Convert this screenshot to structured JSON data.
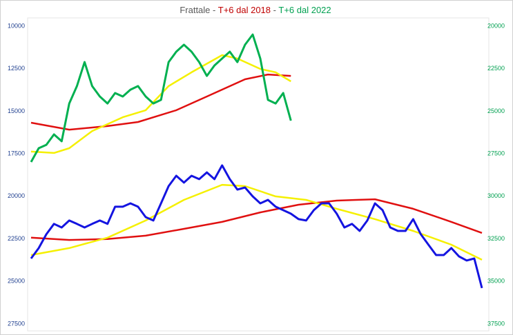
{
  "chart_data": {
    "type": "line",
    "title_parts": [
      {
        "text": "Frattale",
        "color": "#595959"
      },
      {
        "text": "-",
        "color": "#595959"
      },
      {
        "text": "T+6 dal 2018",
        "color": "#c00000"
      },
      {
        "text": "-",
        "color": "#595959"
      },
      {
        "text": "T+6 dal 2022",
        "color": "#00a050"
      }
    ],
    "xlim": [
      0,
      59
    ],
    "ylim": [
      10000,
      27500
    ],
    "yticks": [
      10000,
      12500,
      15000,
      17500,
      20000,
      22500,
      25000,
      27500
    ],
    "y_inverted": true,
    "ytick_color": "#1f3f8f",
    "y2lim": [
      20000,
      37500
    ],
    "y2ticks": [
      20000,
      22500,
      25000,
      27500,
      30000,
      32500,
      35000,
      37500
    ],
    "y2_inverted": true,
    "y2tick_color": "#00a050",
    "grid": false,
    "series": [
      {
        "color": "#e01010",
        "width": 2.5,
        "x": [
          0,
          5,
          10,
          15,
          20,
          25,
          30,
          35,
          40,
          45,
          50,
          55,
          59
        ],
        "values": [
          22430,
          22560,
          22510,
          22310,
          21910,
          21500,
          20940,
          20490,
          20250,
          20170,
          20730,
          21500,
          22150
        ]
      },
      {
        "color": "#f5f000",
        "width": 2.5,
        "x": [
          0,
          5,
          10,
          15,
          20,
          25,
          28,
          32,
          36,
          40,
          45,
          50,
          55,
          59
        ],
        "values": [
          23450,
          23040,
          22430,
          21420,
          20210,
          19320,
          19400,
          20000,
          20210,
          20730,
          21340,
          22030,
          22840,
          23730
        ]
      },
      {
        "color": "#1414e0",
        "width": 3,
        "x": [
          0,
          1,
          2,
          3,
          4,
          5,
          6,
          7,
          8,
          9,
          10,
          11,
          12,
          13,
          14,
          15,
          16,
          17,
          18,
          19,
          20,
          21,
          22,
          23,
          24,
          25,
          26,
          27,
          28,
          29,
          30,
          31,
          32,
          33,
          34,
          35,
          36,
          37,
          38,
          39,
          40,
          41,
          42,
          43,
          44,
          45,
          46,
          47,
          48,
          49,
          50,
          51,
          52,
          53,
          54,
          55,
          56,
          57,
          58,
          59
        ],
        "values": [
          23650,
          23040,
          22230,
          21620,
          21830,
          21420,
          21620,
          21830,
          21620,
          21420,
          21620,
          20610,
          20610,
          20410,
          20610,
          21220,
          21420,
          20410,
          19400,
          18790,
          19190,
          18790,
          18990,
          18590,
          18990,
          18180,
          18990,
          19600,
          19480,
          20000,
          20410,
          20210,
          20610,
          20810,
          21020,
          21340,
          21420,
          20810,
          20410,
          20410,
          21020,
          21830,
          21620,
          22030,
          21420,
          20410,
          20810,
          21830,
          22030,
          22030,
          21340,
          22230,
          22840,
          23450,
          23450,
          23040,
          23530,
          23770,
          23650,
          25390
        ]
      },
      {
        "color": "#e01010",
        "width": 2.5,
        "axis": "y2",
        "x": [
          0,
          5,
          10,
          14,
          19,
          23,
          28,
          31,
          34
        ],
        "values": [
          25670,
          26080,
          25870,
          25630,
          24940,
          24130,
          23120,
          22840,
          22920
        ]
      },
      {
        "color": "#f5f000",
        "width": 2.5,
        "axis": "y2",
        "x": [
          0,
          3,
          5,
          8,
          12,
          15,
          18,
          21,
          25,
          27,
          30,
          32,
          34
        ],
        "values": [
          27370,
          27450,
          27170,
          26160,
          25350,
          24940,
          23520,
          22710,
          21700,
          21900,
          22510,
          22710,
          23240
        ]
      },
      {
        "color": "#00b050",
        "width": 3,
        "axis": "y2",
        "x": [
          0,
          1,
          2,
          3,
          4,
          5,
          6,
          7,
          8,
          9,
          10,
          11,
          12,
          13,
          14,
          15,
          16,
          17,
          18,
          19,
          20,
          21,
          22,
          23,
          24,
          25,
          26,
          27,
          28,
          29,
          30,
          31,
          32,
          33,
          34
        ],
        "values": [
          27980,
          27170,
          26970,
          26360,
          26760,
          24540,
          23520,
          22110,
          23520,
          24130,
          24540,
          23930,
          24130,
          23730,
          23520,
          24130,
          24540,
          24330,
          22110,
          21500,
          21090,
          21500,
          22110,
          22920,
          22310,
          21900,
          21500,
          22110,
          21090,
          20490,
          21900,
          24330,
          24540,
          23930,
          25550
        ]
      }
    ]
  }
}
